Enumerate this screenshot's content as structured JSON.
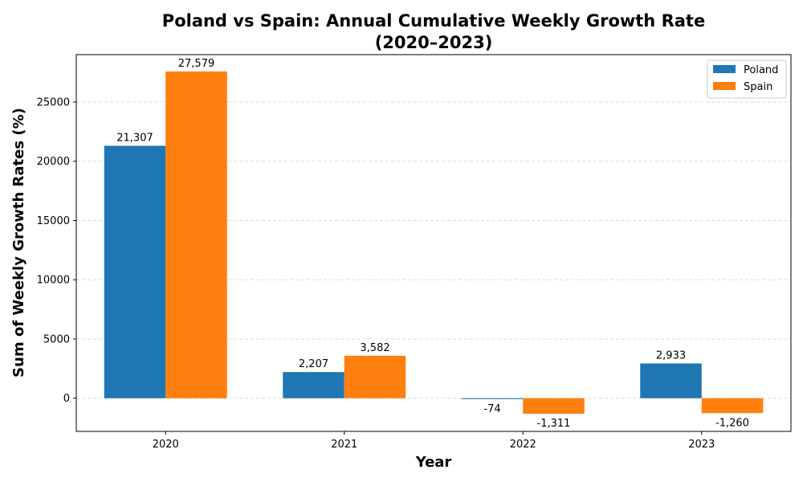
{
  "chart_data": {
    "type": "bar",
    "title_line1": "Poland vs Spain: Annual Cumulative Weekly Growth Rate",
    "title_line2": "(2020–2023)",
    "xlabel": "Year",
    "ylabel": "Sum of Weekly Growth Rates (%)",
    "categories": [
      "2020",
      "2021",
      "2022",
      "2023"
    ],
    "series": [
      {
        "name": "Poland",
        "color": "#1f77b4",
        "values": [
          21307,
          2207,
          -74,
          2933
        ],
        "labels": [
          "21,307",
          "2,207",
          "-74",
          "2,933"
        ]
      },
      {
        "name": "Spain",
        "color": "#ff7f0e",
        "values": [
          27579,
          3582,
          -1311,
          -1260
        ],
        "labels": [
          "27,579",
          "3,582",
          "-1,311",
          "-1,260"
        ]
      }
    ],
    "ylim": [
      -2800,
      29000
    ],
    "yticks": [
      0,
      5000,
      10000,
      15000,
      20000,
      25000
    ],
    "ytick_labels": [
      "0",
      "5000",
      "10000",
      "15000",
      "20000",
      "25000"
    ],
    "grid": "y-dashed",
    "legend_position": "top-right"
  }
}
